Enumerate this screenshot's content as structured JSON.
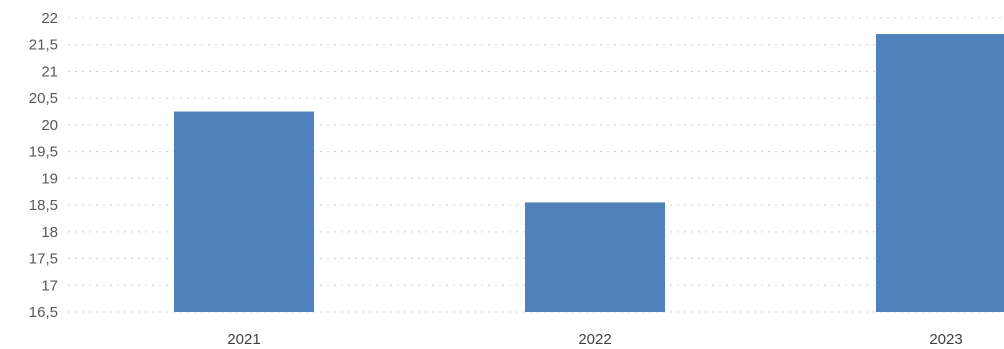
{
  "chart_data": {
    "type": "bar",
    "categories": [
      "2021",
      "2022",
      "2023"
    ],
    "values": [
      20.25,
      18.55,
      21.7
    ],
    "ylim": [
      16.5,
      22
    ],
    "yticks": [
      "16,5",
      "17",
      "17,5",
      "18",
      "18,5",
      "19",
      "19,5",
      "20",
      "20,5",
      "21",
      "21,5",
      "22"
    ],
    "grid": true,
    "bar_color": "#4f81bd",
    "title": "",
    "xlabel": "",
    "ylabel": ""
  }
}
